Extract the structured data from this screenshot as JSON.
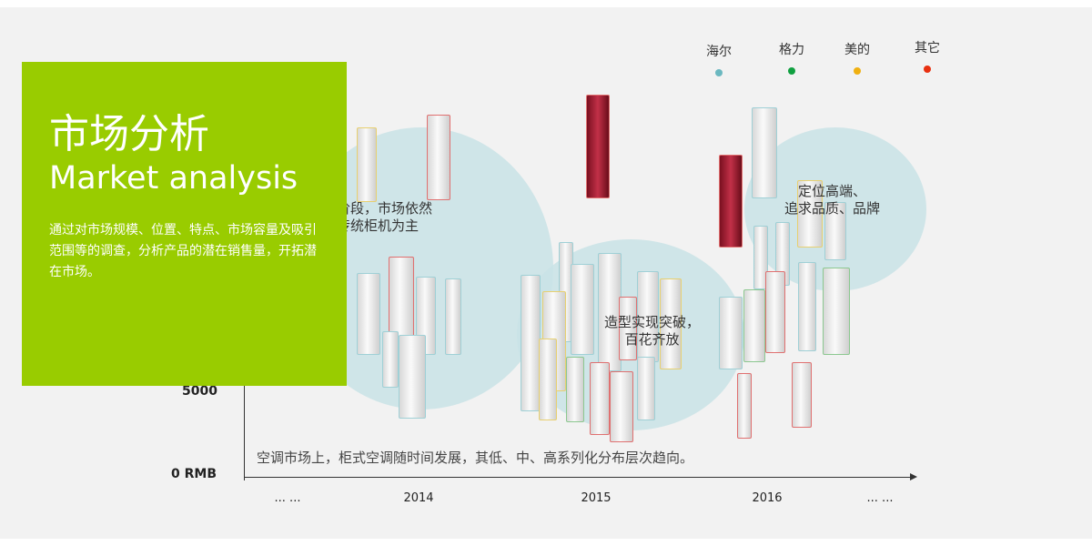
{
  "panel": {
    "title_cn": "市场分析",
    "title_en": "Market analysis",
    "description": "通过对市场规模、位置、特点、市场容量及吸引范围等的调查，分析产品的潜在销售量，开拓潜在市场。"
  },
  "legend": [
    {
      "label": "海尔",
      "color": "#6bb8c0"
    },
    {
      "label": "格力",
      "color": "#10a040"
    },
    {
      "label": "美的",
      "color": "#f0b010"
    },
    {
      "label": "其它",
      "color": "#e83010"
    }
  ],
  "circles": [
    {
      "text1": "尝试阶段，市场依然",
      "text2": "以传统柜机为主"
    },
    {
      "text1": "造型实现突破，",
      "text2": "百花齐放"
    },
    {
      "text1": "定位高端、",
      "text2": "追求品质、品牌"
    }
  ],
  "axis": {
    "y_labels": [
      "5000",
      "0 RMB"
    ],
    "x_labels": [
      "... ...",
      "2014",
      "2015",
      "2016",
      "... ..."
    ]
  },
  "note": "空调市场上，柜式空调随时间发展，其低、中、高系列化分布层次趋向。"
}
